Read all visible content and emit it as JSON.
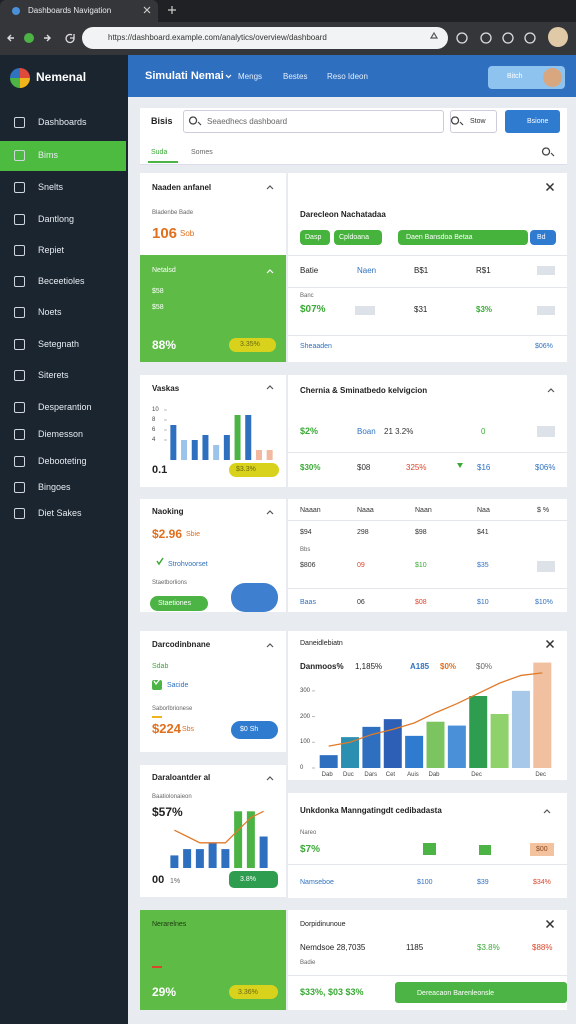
{
  "browser": {
    "tab": "Dashboards Navigation",
    "url": "https://dashboard.example.com/analytics/overview/dashboard"
  },
  "header": {
    "brand": "Nemenal",
    "title": "Simulati Nemai",
    "nav": [
      "Mengs",
      "Bestes",
      "Reso Ideon"
    ],
    "user": "Bitch"
  },
  "sidebar": {
    "items": [
      "Dashboards",
      "Bims",
      "Snelts",
      "Dantlong",
      "Repiet",
      "Beceetioles",
      "Noets",
      "Setegnath",
      "Siterets",
      "Desperantion",
      "Diemesson",
      "Debooteting",
      "Bingoes",
      "Diet Sakes"
    ],
    "active": 1
  },
  "toolbar": {
    "label": "Bisis",
    "search": "Seaedhecs dashboard",
    "filter": "Stow",
    "action": "Bsione",
    "tabs": [
      "Suda",
      "Somes"
    ]
  },
  "revenue": {
    "title": "Naaden anfanel",
    "subtitle": "Bladenbe Bade",
    "value": "106",
    "unit": "Sob"
  },
  "net": {
    "title": "Netalsd",
    "line1": "$58",
    "line2": "$58",
    "value": "88%",
    "badge": "3.35%"
  },
  "visits": {
    "title": "Vaskas",
    "chart": {
      "type": "bar",
      "values": [
        7,
        4,
        4,
        5,
        3,
        5,
        9,
        9,
        2,
        2
      ],
      "colors": [
        "#2f6fc0",
        "#9cc3ea",
        "#2f6fc0",
        "#2f6fc0",
        "#9cc3ea",
        "#2f6fc0",
        "#4cb445",
        "#2f6fc0",
        "#f2b9a0",
        "#f2b9a0"
      ],
      "ylim": [
        0,
        10
      ],
      "yticks": [
        4,
        6,
        8,
        10
      ]
    },
    "value": "0.1",
    "badge": "$3.3%"
  },
  "ranking": {
    "title": "Naoking",
    "value": "$2.96",
    "unit": "Sbie",
    "status": "Strohvoorset",
    "note": "Staetborlions",
    "button": "Staetiones"
  },
  "conversion": {
    "title": "Darcodinbnane",
    "tag": "Sdab",
    "check": "Sacide",
    "note": "Saborlbrionese",
    "value": "$224",
    "unit": "Sbs",
    "button": "$0 Sh"
  },
  "growth": {
    "title": "Daraloantder al",
    "subtitle": "Baatiolonaieon",
    "value": "$57%",
    "chart": {
      "type": "bar",
      "values": [
        2,
        3,
        3,
        4,
        3,
        9,
        9,
        5
      ],
      "colors": [
        "#2f6fc0",
        "#2f6fc0",
        "#2f6fc0",
        "#2f6fc0",
        "#2f6fc0",
        "#4cb445",
        "#4cb445",
        "#2f6fc0"
      ],
      "trend": [
        6,
        5,
        4,
        4,
        4,
        6,
        8,
        9
      ],
      "trend_color": "#e07a2a",
      "ylim": [
        0,
        10
      ]
    },
    "footer": "00",
    "footer_unit": "1%",
    "badge": "3.8%"
  },
  "summary": {
    "title": "Nerarelnes",
    "value": "29%",
    "badge": "3.36%"
  },
  "overview": {
    "title": "Darecleon Nachatadaa",
    "pills": [
      "Dasp",
      "Cpldoana",
      "Daen Bansdoa Betaa",
      "Bd"
    ],
    "header": [
      "Batie",
      "Naen",
      "B$1",
      "R$1"
    ],
    "row_label": "Banc",
    "row": [
      "$07%",
      "$31",
      "$3%"
    ],
    "footer": "Sheaaden",
    "footer_value": "$06%"
  },
  "channels": {
    "title": "Chernia & Sminatbedo kelvigcion",
    "rows": [
      [
        "$2%",
        "Boan",
        "21 3.2%",
        "0"
      ],
      [
        "$30%",
        "$08",
        "325%",
        "$16",
        "$06%"
      ]
    ]
  },
  "table": {
    "header": [
      "Naaan",
      "Naaa",
      "Naan",
      "Naa",
      "$ %"
    ],
    "rows": [
      [
        "$94",
        "298",
        "$98",
        "$41"
      ],
      [
        "$806",
        "09",
        "$10",
        "$35"
      ],
      [
        "Baas",
        "06",
        "$08",
        "$10",
        "$10%"
      ]
    ],
    "note": "Bbs"
  },
  "trend": {
    "title": "Daneidlebiatn",
    "legend": [
      "Danmoos%",
      "1,185%",
      "A185",
      "$0%",
      "$0%"
    ],
    "chart": {
      "type": "bar",
      "categories": [
        "Dab",
        "Duc",
        "Dars",
        "Cet",
        "Auis",
        "Dab",
        null,
        "Dec",
        null,
        null,
        "Dec"
      ],
      "values": [
        50,
        120,
        160,
        190,
        125,
        180,
        165,
        280,
        210,
        300,
        410
      ],
      "colors": [
        "#2f6fc0",
        "#2a8fb0",
        "#2f6fc0",
        "#2c5fb5",
        "#2f7bd0",
        "#7cc460",
        "#4a90d9",
        "#2e9d4f",
        "#8fd16a",
        "#a8c8ea",
        "#f0c0a0"
      ],
      "trend": [
        85,
        100,
        130,
        150,
        175,
        215,
        250,
        290,
        330,
        360,
        370
      ],
      "trend_color": "#e07a2a",
      "ylim": [
        0,
        420
      ],
      "yticks": [
        0,
        100,
        200,
        300
      ]
    }
  },
  "engagement": {
    "title": "Unkdonka Manngatingdt cedibadasta",
    "label": "Nareo",
    "value": "$7%",
    "chip": "$00",
    "footer": [
      "Namseboe",
      "$100",
      "$39",
      "$34%"
    ]
  },
  "final": {
    "title": "Dorpidinunoue",
    "row": [
      "Nemdsoe 28,7035",
      "1185",
      "$3.8%",
      "$88%"
    ],
    "note": "Badie",
    "value": "$33%, $03 $3%",
    "button": "Dereacaon Barenleonsle"
  }
}
